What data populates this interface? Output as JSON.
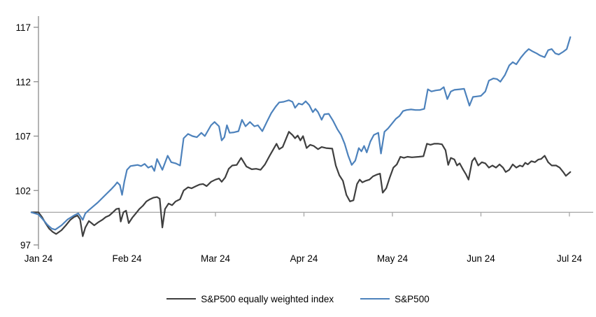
{
  "chart_data": {
    "type": "line",
    "title": "",
    "x_unit": "months_from_jan_2024",
    "x_tick_labels": [
      "Jan 24",
      "Feb 24",
      "Mar 24",
      "Apr 24",
      "May 24",
      "Jun 24",
      "Jul 24"
    ],
    "y_ticks": [
      97,
      102,
      107,
      112,
      117
    ],
    "ylim": [
      96.5,
      118.2
    ],
    "baseline_value": 100,
    "grid": false,
    "legend_position": "bottom-center",
    "axis_color": "#8c8c8c",
    "baseline_color": "#a6a6a6",
    "background_color": "#ffffff",
    "series": [
      {
        "name": "S&P500 equally weighted index",
        "color": "#3f3f3f",
        "width": 2.2,
        "points": [
          [
            -0.08,
            100.0
          ],
          [
            0,
            100.0
          ],
          [
            0.04,
            99.55
          ],
          [
            0.08,
            99.0
          ],
          [
            0.12,
            98.5
          ],
          [
            0.16,
            98.2
          ],
          [
            0.2,
            98.0
          ],
          [
            0.26,
            98.35
          ],
          [
            0.31,
            98.8
          ],
          [
            0.36,
            99.3
          ],
          [
            0.4,
            99.55
          ],
          [
            0.44,
            99.7
          ],
          [
            0.47,
            99.35
          ],
          [
            0.5,
            97.8
          ],
          [
            0.53,
            98.6
          ],
          [
            0.57,
            99.2
          ],
          [
            0.6,
            99.0
          ],
          [
            0.63,
            98.8
          ],
          [
            0.68,
            99.1
          ],
          [
            0.72,
            99.3
          ],
          [
            0.76,
            99.55
          ],
          [
            0.8,
            99.7
          ],
          [
            0.84,
            100.0
          ],
          [
            0.88,
            100.3
          ],
          [
            0.91,
            100.35
          ],
          [
            0.93,
            99.15
          ],
          [
            0.96,
            100.0
          ],
          [
            0.99,
            100.15
          ],
          [
            1.02,
            99.0
          ],
          [
            1.06,
            99.5
          ],
          [
            1.1,
            99.9
          ],
          [
            1.14,
            100.3
          ],
          [
            1.18,
            100.6
          ],
          [
            1.22,
            101.0
          ],
          [
            1.26,
            101.2
          ],
          [
            1.3,
            101.35
          ],
          [
            1.34,
            101.4
          ],
          [
            1.37,
            101.25
          ],
          [
            1.4,
            98.6
          ],
          [
            1.43,
            100.3
          ],
          [
            1.47,
            100.8
          ],
          [
            1.51,
            100.65
          ],
          [
            1.55,
            101.0
          ],
          [
            1.6,
            101.2
          ],
          [
            1.64,
            102.0
          ],
          [
            1.69,
            102.3
          ],
          [
            1.73,
            102.2
          ],
          [
            1.78,
            102.4
          ],
          [
            1.82,
            102.55
          ],
          [
            1.86,
            102.6
          ],
          [
            1.9,
            102.4
          ],
          [
            1.95,
            102.8
          ],
          [
            2.0,
            103.0
          ],
          [
            2.04,
            103.1
          ],
          [
            2.07,
            102.8
          ],
          [
            2.11,
            103.2
          ],
          [
            2.15,
            104.0
          ],
          [
            2.19,
            104.3
          ],
          [
            2.24,
            104.35
          ],
          [
            2.29,
            105.0
          ],
          [
            2.35,
            104.2
          ],
          [
            2.41,
            103.95
          ],
          [
            2.46,
            104.0
          ],
          [
            2.51,
            103.9
          ],
          [
            2.56,
            104.4
          ],
          [
            2.62,
            105.3
          ],
          [
            2.69,
            106.3
          ],
          [
            2.72,
            105.8
          ],
          [
            2.76,
            106.0
          ],
          [
            2.83,
            107.4
          ],
          [
            2.87,
            107.1
          ],
          [
            2.9,
            106.8
          ],
          [
            2.93,
            107.05
          ],
          [
            2.96,
            106.6
          ],
          [
            2.99,
            107.0
          ],
          [
            3.03,
            105.9
          ],
          [
            3.07,
            106.2
          ],
          [
            3.11,
            106.1
          ],
          [
            3.16,
            105.8
          ],
          [
            3.2,
            106.0
          ],
          [
            3.25,
            105.9
          ],
          [
            3.32,
            105.85
          ],
          [
            3.36,
            104.3
          ],
          [
            3.4,
            103.4
          ],
          [
            3.44,
            102.9
          ],
          [
            3.48,
            101.6
          ],
          [
            3.52,
            101.0
          ],
          [
            3.56,
            101.1
          ],
          [
            3.6,
            102.6
          ],
          [
            3.63,
            103.0
          ],
          [
            3.66,
            102.75
          ],
          [
            3.7,
            102.9
          ],
          [
            3.74,
            103.0
          ],
          [
            3.78,
            103.3
          ],
          [
            3.82,
            103.45
          ],
          [
            3.86,
            103.55
          ],
          [
            3.89,
            101.8
          ],
          [
            3.93,
            102.2
          ],
          [
            3.97,
            103.2
          ],
          [
            4.01,
            104.1
          ],
          [
            4.05,
            104.4
          ],
          [
            4.09,
            105.1
          ],
          [
            4.13,
            105.0
          ],
          [
            4.17,
            105.1
          ],
          [
            4.22,
            105.05
          ],
          [
            4.3,
            105.1
          ],
          [
            4.35,
            105.15
          ],
          [
            4.39,
            106.3
          ],
          [
            4.43,
            106.2
          ],
          [
            4.47,
            106.3
          ],
          [
            4.52,
            106.3
          ],
          [
            4.56,
            106.25
          ],
          [
            4.6,
            105.7
          ],
          [
            4.63,
            104.35
          ],
          [
            4.66,
            105.0
          ],
          [
            4.7,
            104.85
          ],
          [
            4.73,
            104.3
          ],
          [
            4.76,
            104.5
          ],
          [
            4.8,
            103.9
          ],
          [
            4.83,
            103.5
          ],
          [
            4.86,
            103.0
          ],
          [
            4.9,
            104.7
          ],
          [
            4.93,
            105.0
          ],
          [
            4.97,
            104.3
          ],
          [
            5.01,
            104.6
          ],
          [
            5.05,
            104.5
          ],
          [
            5.09,
            104.1
          ],
          [
            5.13,
            104.3
          ],
          [
            5.17,
            104.1
          ],
          [
            5.21,
            104.4
          ],
          [
            5.25,
            104.1
          ],
          [
            5.28,
            103.7
          ],
          [
            5.32,
            103.9
          ],
          [
            5.36,
            104.4
          ],
          [
            5.4,
            104.1
          ],
          [
            5.44,
            104.3
          ],
          [
            5.47,
            104.2
          ],
          [
            5.5,
            104.55
          ],
          [
            5.53,
            104.4
          ],
          [
            5.57,
            104.7
          ],
          [
            5.61,
            104.6
          ],
          [
            5.65,
            104.85
          ],
          [
            5.68,
            104.9
          ],
          [
            5.72,
            105.2
          ],
          [
            5.76,
            104.6
          ],
          [
            5.8,
            104.3
          ],
          [
            5.85,
            104.3
          ],
          [
            5.89,
            104.1
          ],
          [
            5.93,
            103.7
          ],
          [
            5.96,
            103.35
          ],
          [
            6.01,
            103.7
          ]
        ]
      },
      {
        "name": "S&P500",
        "color": "#4d82bc",
        "width": 2.2,
        "points": [
          [
            -0.08,
            100.0
          ],
          [
            0,
            99.8
          ],
          [
            0.05,
            99.35
          ],
          [
            0.1,
            98.85
          ],
          [
            0.15,
            98.5
          ],
          [
            0.19,
            98.4
          ],
          [
            0.26,
            98.8
          ],
          [
            0.33,
            99.35
          ],
          [
            0.4,
            99.7
          ],
          [
            0.45,
            99.9
          ],
          [
            0.48,
            99.55
          ],
          [
            0.5,
            99.3
          ],
          [
            0.53,
            99.9
          ],
          [
            0.57,
            100.2
          ],
          [
            0.62,
            100.55
          ],
          [
            0.67,
            100.9
          ],
          [
            0.72,
            101.3
          ],
          [
            0.77,
            101.7
          ],
          [
            0.82,
            102.1
          ],
          [
            0.86,
            102.45
          ],
          [
            0.89,
            102.75
          ],
          [
            0.92,
            102.5
          ],
          [
            0.945,
            101.6
          ],
          [
            0.97,
            102.8
          ],
          [
            1.0,
            103.9
          ],
          [
            1.04,
            104.25
          ],
          [
            1.08,
            104.3
          ],
          [
            1.12,
            104.35
          ],
          [
            1.16,
            104.25
          ],
          [
            1.2,
            104.45
          ],
          [
            1.24,
            104.1
          ],
          [
            1.28,
            104.25
          ],
          [
            1.31,
            103.8
          ],
          [
            1.34,
            104.9
          ],
          [
            1.4,
            103.9
          ],
          [
            1.46,
            105.2
          ],
          [
            1.5,
            104.6
          ],
          [
            1.55,
            104.5
          ],
          [
            1.6,
            104.3
          ],
          [
            1.64,
            106.8
          ],
          [
            1.69,
            107.2
          ],
          [
            1.74,
            107.0
          ],
          [
            1.79,
            106.9
          ],
          [
            1.84,
            107.3
          ],
          [
            1.88,
            107.0
          ],
          [
            1.95,
            108.0
          ],
          [
            1.99,
            108.3
          ],
          [
            2.04,
            107.9
          ],
          [
            2.07,
            106.6
          ],
          [
            2.1,
            106.9
          ],
          [
            2.13,
            108.0
          ],
          [
            2.16,
            107.3
          ],
          [
            2.21,
            107.35
          ],
          [
            2.26,
            107.45
          ],
          [
            2.3,
            108.5
          ],
          [
            2.34,
            107.9
          ],
          [
            2.39,
            108.3
          ],
          [
            2.44,
            107.9
          ],
          [
            2.48,
            108.0
          ],
          [
            2.53,
            107.45
          ],
          [
            2.58,
            108.3
          ],
          [
            2.63,
            109.1
          ],
          [
            2.68,
            109.7
          ],
          [
            2.72,
            110.1
          ],
          [
            2.77,
            110.15
          ],
          [
            2.83,
            110.3
          ],
          [
            2.87,
            110.15
          ],
          [
            2.9,
            109.6
          ],
          [
            2.94,
            110.0
          ],
          [
            2.98,
            109.9
          ],
          [
            3.02,
            110.2
          ],
          [
            3.06,
            109.85
          ],
          [
            3.1,
            109.2
          ],
          [
            3.13,
            109.5
          ],
          [
            3.16,
            109.2
          ],
          [
            3.2,
            108.5
          ],
          [
            3.23,
            109.0
          ],
          [
            3.28,
            109.05
          ],
          [
            3.33,
            108.4
          ],
          [
            3.38,
            107.6
          ],
          [
            3.42,
            107.1
          ],
          [
            3.46,
            106.3
          ],
          [
            3.5,
            105.2
          ],
          [
            3.54,
            104.35
          ],
          [
            3.58,
            104.75
          ],
          [
            3.62,
            105.9
          ],
          [
            3.65,
            105.6
          ],
          [
            3.68,
            106.1
          ],
          [
            3.71,
            105.5
          ],
          [
            3.75,
            106.5
          ],
          [
            3.79,
            107.1
          ],
          [
            3.84,
            107.3
          ],
          [
            3.87,
            105.4
          ],
          [
            3.91,
            107.4
          ],
          [
            3.95,
            107.7
          ],
          [
            4.0,
            108.2
          ],
          [
            4.04,
            108.6
          ],
          [
            4.08,
            108.85
          ],
          [
            4.12,
            109.3
          ],
          [
            4.16,
            109.4
          ],
          [
            4.21,
            109.45
          ],
          [
            4.26,
            109.4
          ],
          [
            4.31,
            109.4
          ],
          [
            4.36,
            109.5
          ],
          [
            4.4,
            111.3
          ],
          [
            4.44,
            111.1
          ],
          [
            4.49,
            111.2
          ],
          [
            4.54,
            111.25
          ],
          [
            4.58,
            111.5
          ],
          [
            4.62,
            110.4
          ],
          [
            4.66,
            111.1
          ],
          [
            4.7,
            111.25
          ],
          [
            4.76,
            111.3
          ],
          [
            4.81,
            111.35
          ],
          [
            4.87,
            109.8
          ],
          [
            4.91,
            110.6
          ],
          [
            4.96,
            110.65
          ],
          [
            5.0,
            110.7
          ],
          [
            5.05,
            111.1
          ],
          [
            5.09,
            112.1
          ],
          [
            5.14,
            112.3
          ],
          [
            5.18,
            112.25
          ],
          [
            5.22,
            112.0
          ],
          [
            5.27,
            112.6
          ],
          [
            5.32,
            113.5
          ],
          [
            5.36,
            113.8
          ],
          [
            5.4,
            113.6
          ],
          [
            5.45,
            114.2
          ],
          [
            5.5,
            114.7
          ],
          [
            5.54,
            115.0
          ],
          [
            5.58,
            114.8
          ],
          [
            5.63,
            114.6
          ],
          [
            5.67,
            114.4
          ],
          [
            5.72,
            114.25
          ],
          [
            5.76,
            114.9
          ],
          [
            5.8,
            115.0
          ],
          [
            5.84,
            114.6
          ],
          [
            5.88,
            114.5
          ],
          [
            5.93,
            114.75
          ],
          [
            5.97,
            115.0
          ],
          [
            6.01,
            116.1
          ]
        ]
      }
    ]
  },
  "legend": {
    "items": [
      {
        "label": "S&P500 equally weighted index",
        "color": "#3f3f3f"
      },
      {
        "label": "S&P500",
        "color": "#4d82bc"
      }
    ]
  }
}
